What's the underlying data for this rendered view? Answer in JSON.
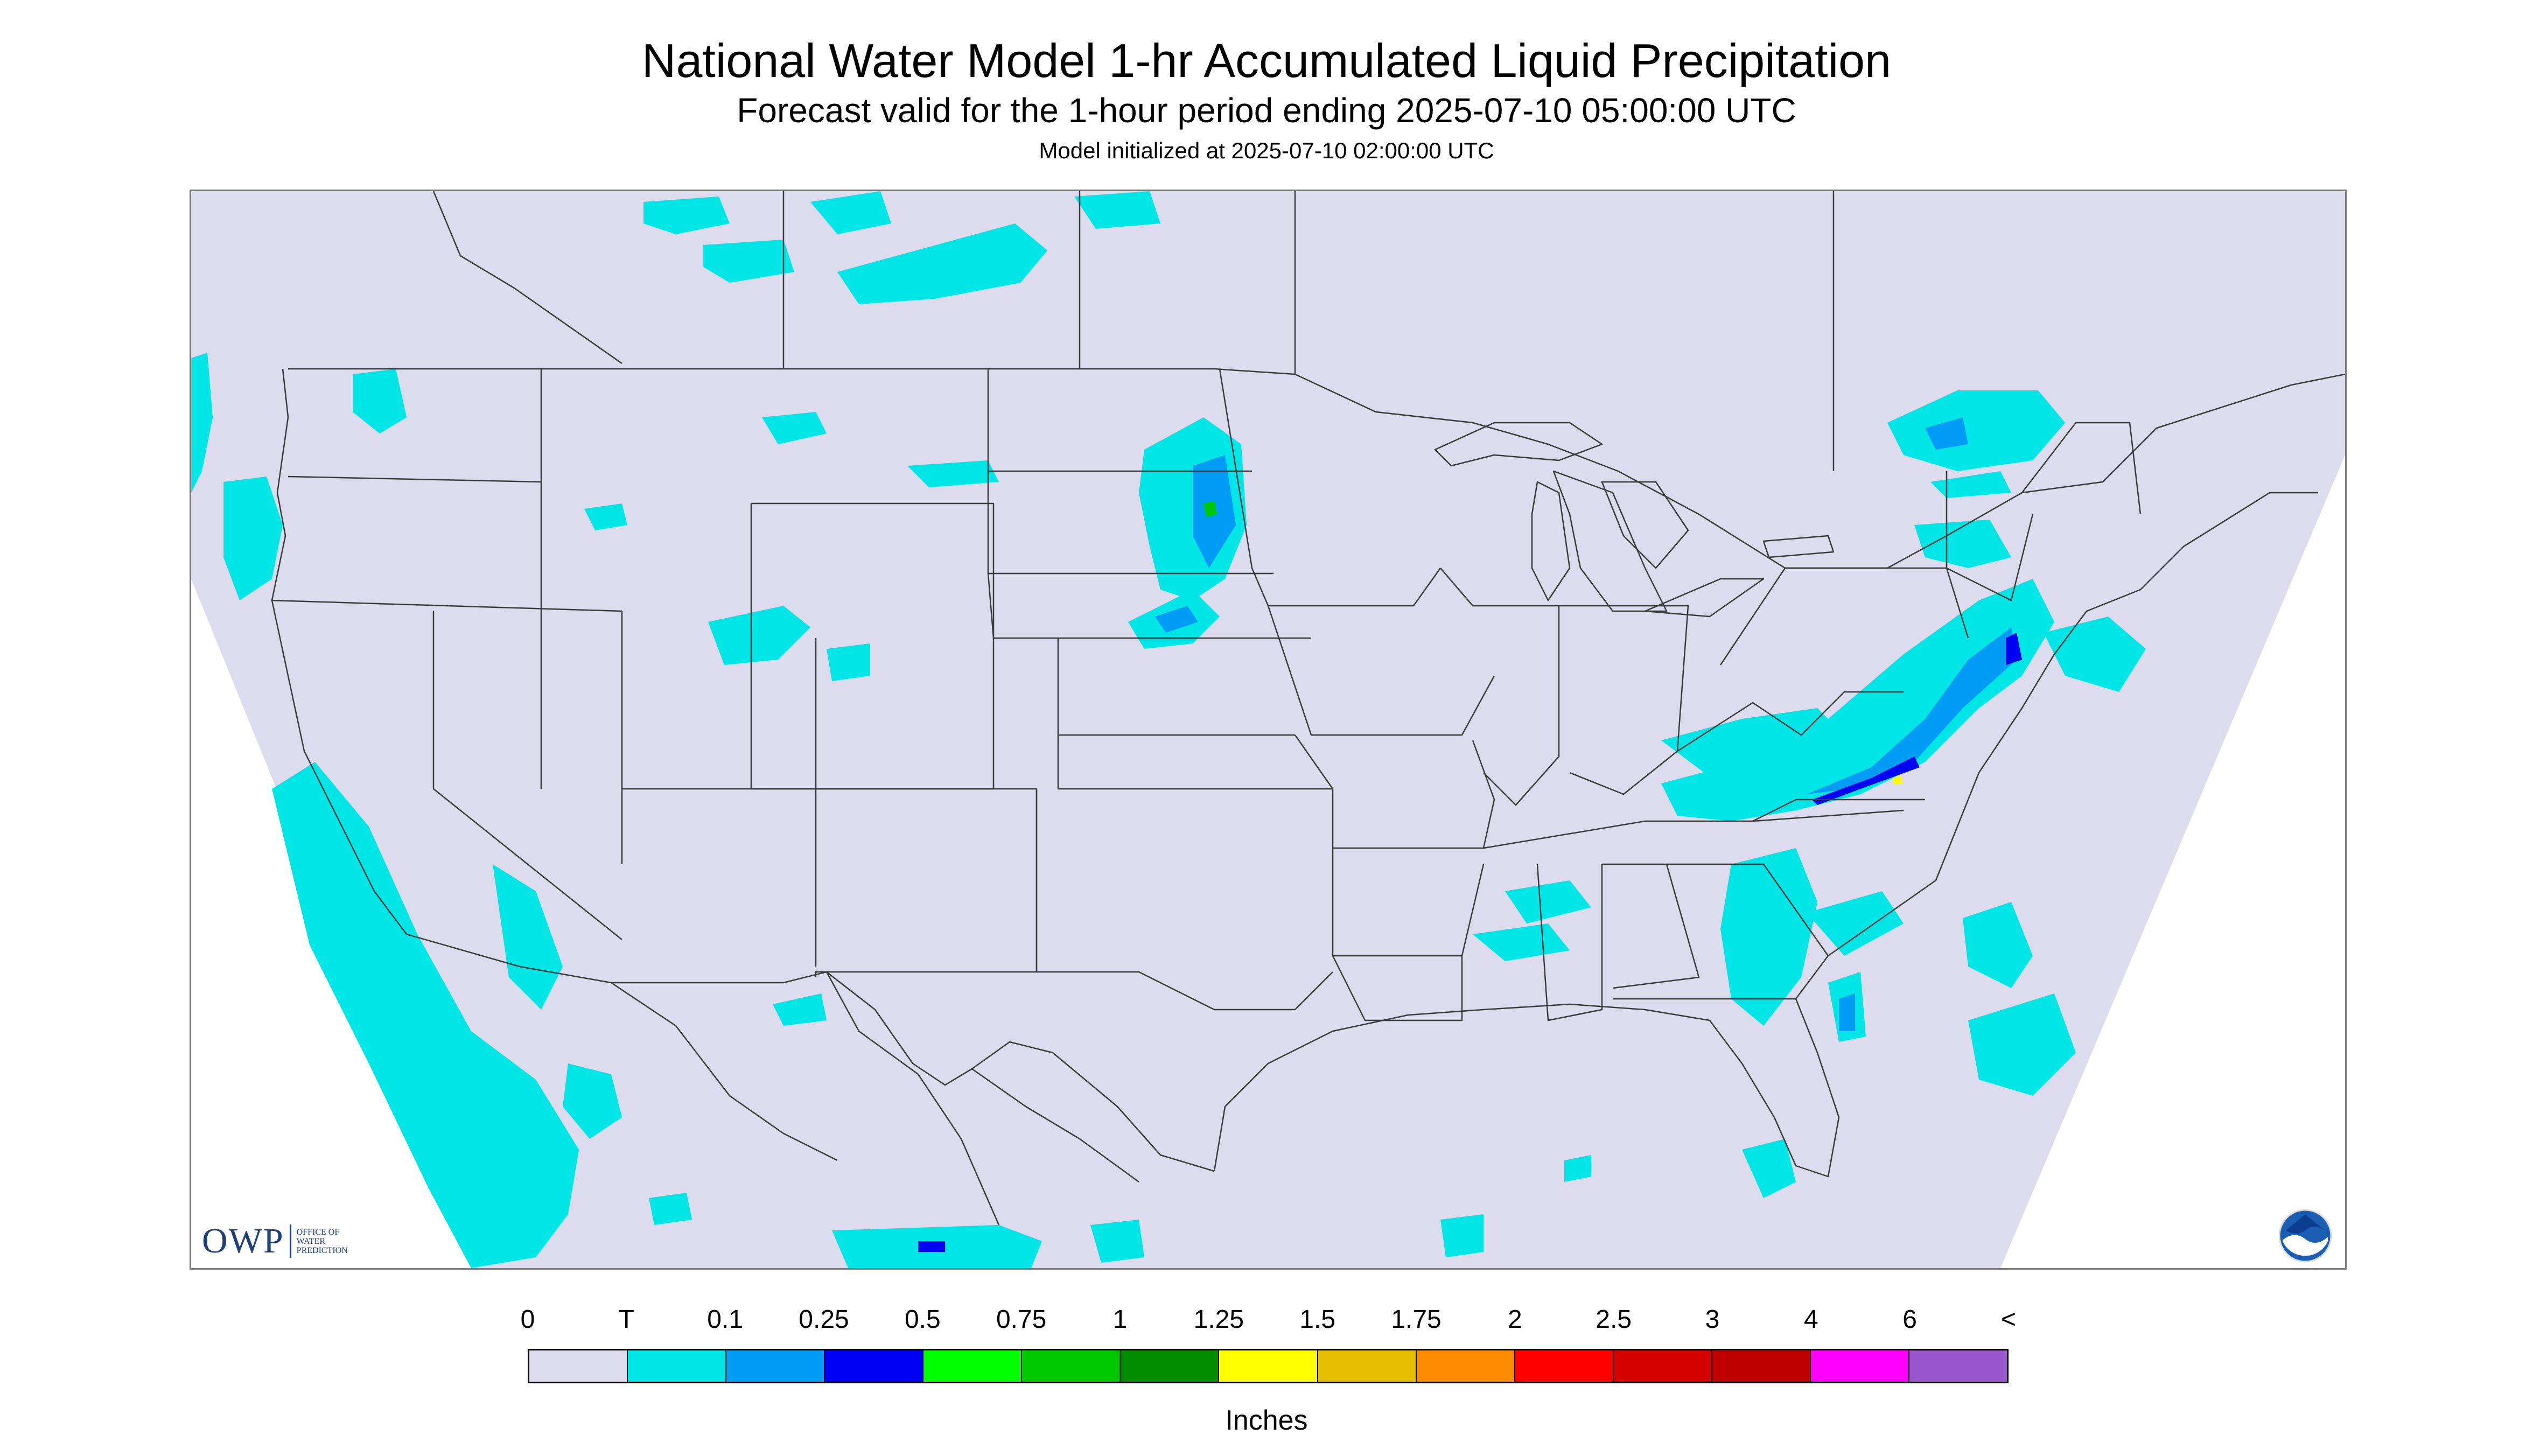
{
  "header": {
    "title": "National Water Model 1-hr Accumulated Liquid Precipitation",
    "subtitle": "Forecast valid for the 1-hour period ending 2025-07-10 05:00:00 UTC",
    "init_line": "Model initialized at 2025-07-10 02:00:00 UTC"
  },
  "logos": {
    "owp_text": "OWP",
    "owp_subtext": "OFFICE OF WATER PREDICTION",
    "noaa_icon": "noaa-logo-icon"
  },
  "colors": {
    "map_domain": "#DCDCEE",
    "boundaries": "#3a3a3a",
    "outside": "#FFFFFF"
  },
  "legend": {
    "units": "Inches",
    "labels": [
      "0",
      "T",
      "0.1",
      "0.25",
      "0.5",
      "0.75",
      "1",
      "1.25",
      "1.5",
      "1.75",
      "2",
      "2.5",
      "3",
      "4",
      "6",
      "<"
    ],
    "bins": [
      {
        "range": "0 - T",
        "color": "#DCDCEE"
      },
      {
        "range": "T - 0.1",
        "color": "#00E5E5"
      },
      {
        "range": "0.1 - 0.25",
        "color": "#009CF5"
      },
      {
        "range": "0.25 - 0.5",
        "color": "#0000F5"
      },
      {
        "range": "0.5 - 0.75",
        "color": "#00FF00"
      },
      {
        "range": "0.75 - 1",
        "color": "#00C800"
      },
      {
        "range": "1 - 1.25",
        "color": "#008C00"
      },
      {
        "range": "1.25 - 1.5",
        "color": "#FFFF00"
      },
      {
        "range": "1.5 - 1.75",
        "color": "#E6BE00"
      },
      {
        "range": "1.75 - 2",
        "color": "#FF8C00"
      },
      {
        "range": "2 - 2.5",
        "color": "#FF0000"
      },
      {
        "range": "2.5 - 3",
        "color": "#D70000"
      },
      {
        "range": "3 - 4",
        "color": "#BE0000"
      },
      {
        "range": "4 - 6",
        "color": "#FF00FF"
      },
      {
        "range": "6 - <",
        "color": "#9A55CC"
      }
    ]
  }
}
